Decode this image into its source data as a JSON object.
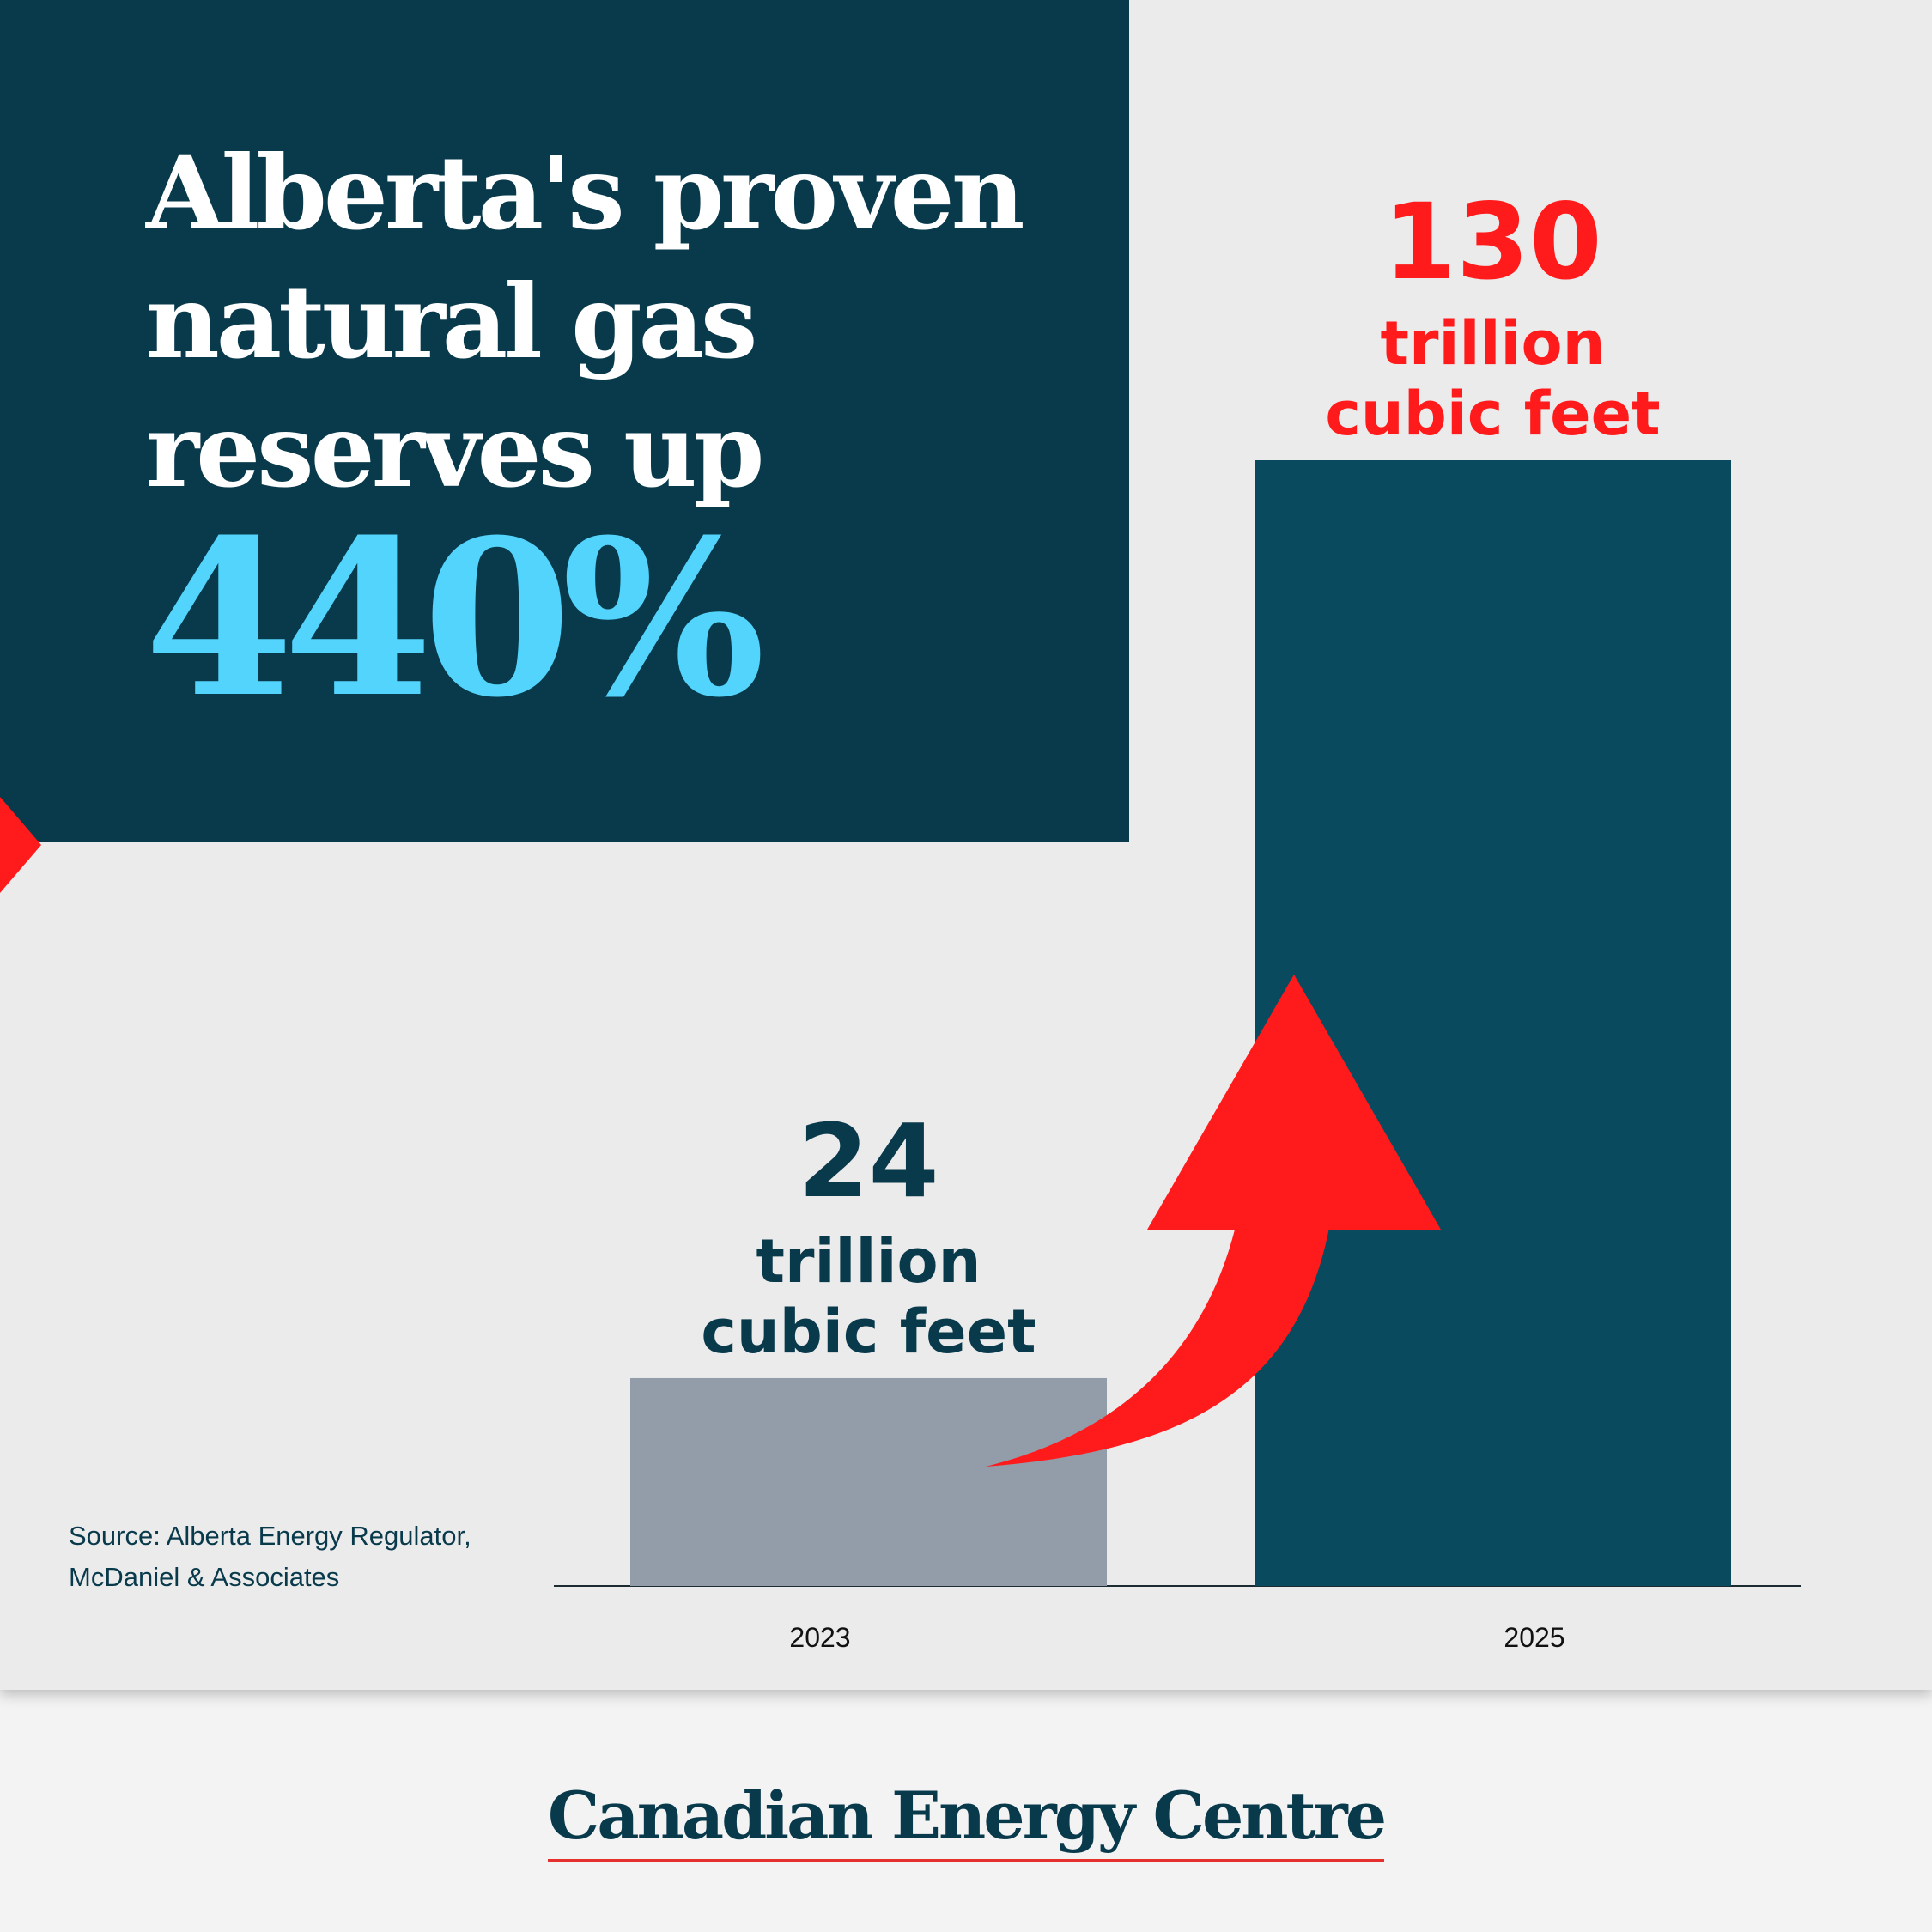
{
  "headline": "Alberta's proven\nnatural gas\nreserves up",
  "highlight": "440%",
  "source": "Source: Alberta Energy Regulator,\nMcDaniel & Associates",
  "brand": "Canadian Energy Centre",
  "colors": {
    "panel": "#093a4c",
    "highlight": "#52d4fc",
    "accent_red": "#ff1b1b",
    "bar_2023": "#939daa",
    "bar_2025": "#0a4a5f",
    "background": "#ebebeb"
  },
  "chart_data": {
    "type": "bar",
    "categories": [
      "2023",
      "2025"
    ],
    "values": [
      24,
      130
    ],
    "unit": "trillion cubic feet",
    "data_labels": [
      {
        "value": "24",
        "line1": "trillion",
        "line2": "cubic feet"
      },
      {
        "value": "130",
        "line1": "trillion",
        "line2": "cubic feet"
      }
    ],
    "ylim": [
      0,
      130
    ],
    "grid": false,
    "legend": "none",
    "annotation": "red upward arrow from 2023 bar to 2025 bar"
  }
}
